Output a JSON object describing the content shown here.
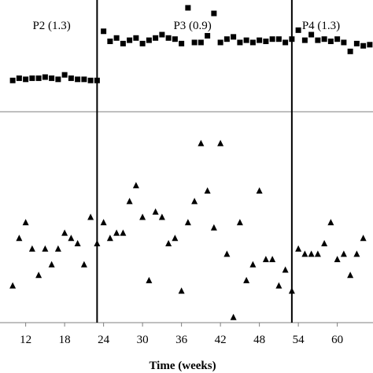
{
  "chart_data": {
    "type": "scatter",
    "xlabel": "Time (weeks)",
    "xlim": [
      9.5,
      65.5
    ],
    "xticks": [
      12,
      18,
      24,
      30,
      36,
      42,
      48,
      54,
      60
    ],
    "phase_boundaries": [
      23,
      53
    ],
    "phase_labels": [
      {
        "text": "P2 (1.3)",
        "center": 16
      },
      {
        "text": "P3 (0.9)",
        "center": 37.7
      },
      {
        "text": "P4 (1.3)",
        "center": 57.5
      }
    ],
    "panels": [
      {
        "series": [
          {
            "marker": "square",
            "x": [
              10,
              11,
              12,
              13,
              14,
              15,
              16,
              17,
              18,
              19,
              20,
              21,
              22,
              23,
              24,
              25,
              26,
              27,
              28,
              29,
              30,
              31,
              32,
              33,
              34,
              35,
              36,
              37,
              38,
              39,
              40,
              41,
              42,
              43,
              44,
              45,
              46,
              47,
              48,
              49,
              50,
              51,
              52,
              53,
              54,
              55,
              56,
              57,
              58,
              59,
              60,
              61,
              62,
              63,
              64,
              65
            ],
            "y": [
              2.8,
              3.0,
              2.9,
              3.0,
              3.0,
              3.1,
              3.0,
              2.9,
              3.3,
              3.0,
              2.9,
              2.9,
              2.8,
              2.8,
              7.2,
              6.3,
              6.6,
              6.1,
              6.4,
              6.6,
              6.1,
              6.4,
              6.6,
              6.9,
              6.6,
              6.5,
              6.1,
              9.3,
              6.2,
              6.2,
              6.8,
              8.8,
              6.2,
              6.5,
              6.7,
              6.2,
              6.4,
              6.2,
              6.4,
              6.3,
              6.5,
              6.5,
              6.2,
              6.5,
              7.3,
              6.4,
              6.9,
              6.4,
              6.5,
              6.3,
              6.5,
              6.2,
              5.4,
              6.1,
              5.9,
              6.0
            ]
          }
        ]
      },
      {
        "series": [
          {
            "marker": "triangle",
            "x": [
              10,
              11,
              12,
              13,
              14,
              15,
              16,
              17,
              18,
              19,
              20,
              21,
              22,
              23,
              24,
              25,
              26,
              27,
              28,
              29,
              30,
              31,
              32,
              33,
              34,
              35,
              36,
              37,
              38,
              39,
              40,
              41,
              42,
              43,
              44,
              45,
              46,
              47,
              48,
              49,
              50,
              51,
              52,
              53,
              54,
              55,
              56,
              57,
              58,
              59,
              60,
              61,
              62,
              63,
              64
            ],
            "y": [
              0.7,
              1.6,
              1.9,
              1.4,
              0.9,
              1.4,
              1.1,
              1.4,
              1.7,
              1.6,
              1.5,
              1.1,
              2.0,
              1.5,
              1.9,
              1.6,
              1.7,
              1.7,
              2.3,
              2.6,
              2.0,
              0.8,
              2.1,
              2.0,
              1.5,
              1.6,
              0.6,
              1.9,
              2.3,
              3.4,
              2.5,
              1.8,
              3.4,
              1.3,
              0.1,
              1.9,
              0.8,
              1.1,
              2.5,
              1.2,
              1.2,
              0.7,
              1.0,
              0.6,
              1.4,
              1.3,
              1.3,
              1.3,
              1.5,
              1.9,
              1.2,
              1.3,
              0.9,
              1.3,
              1.6
            ]
          }
        ]
      }
    ]
  }
}
